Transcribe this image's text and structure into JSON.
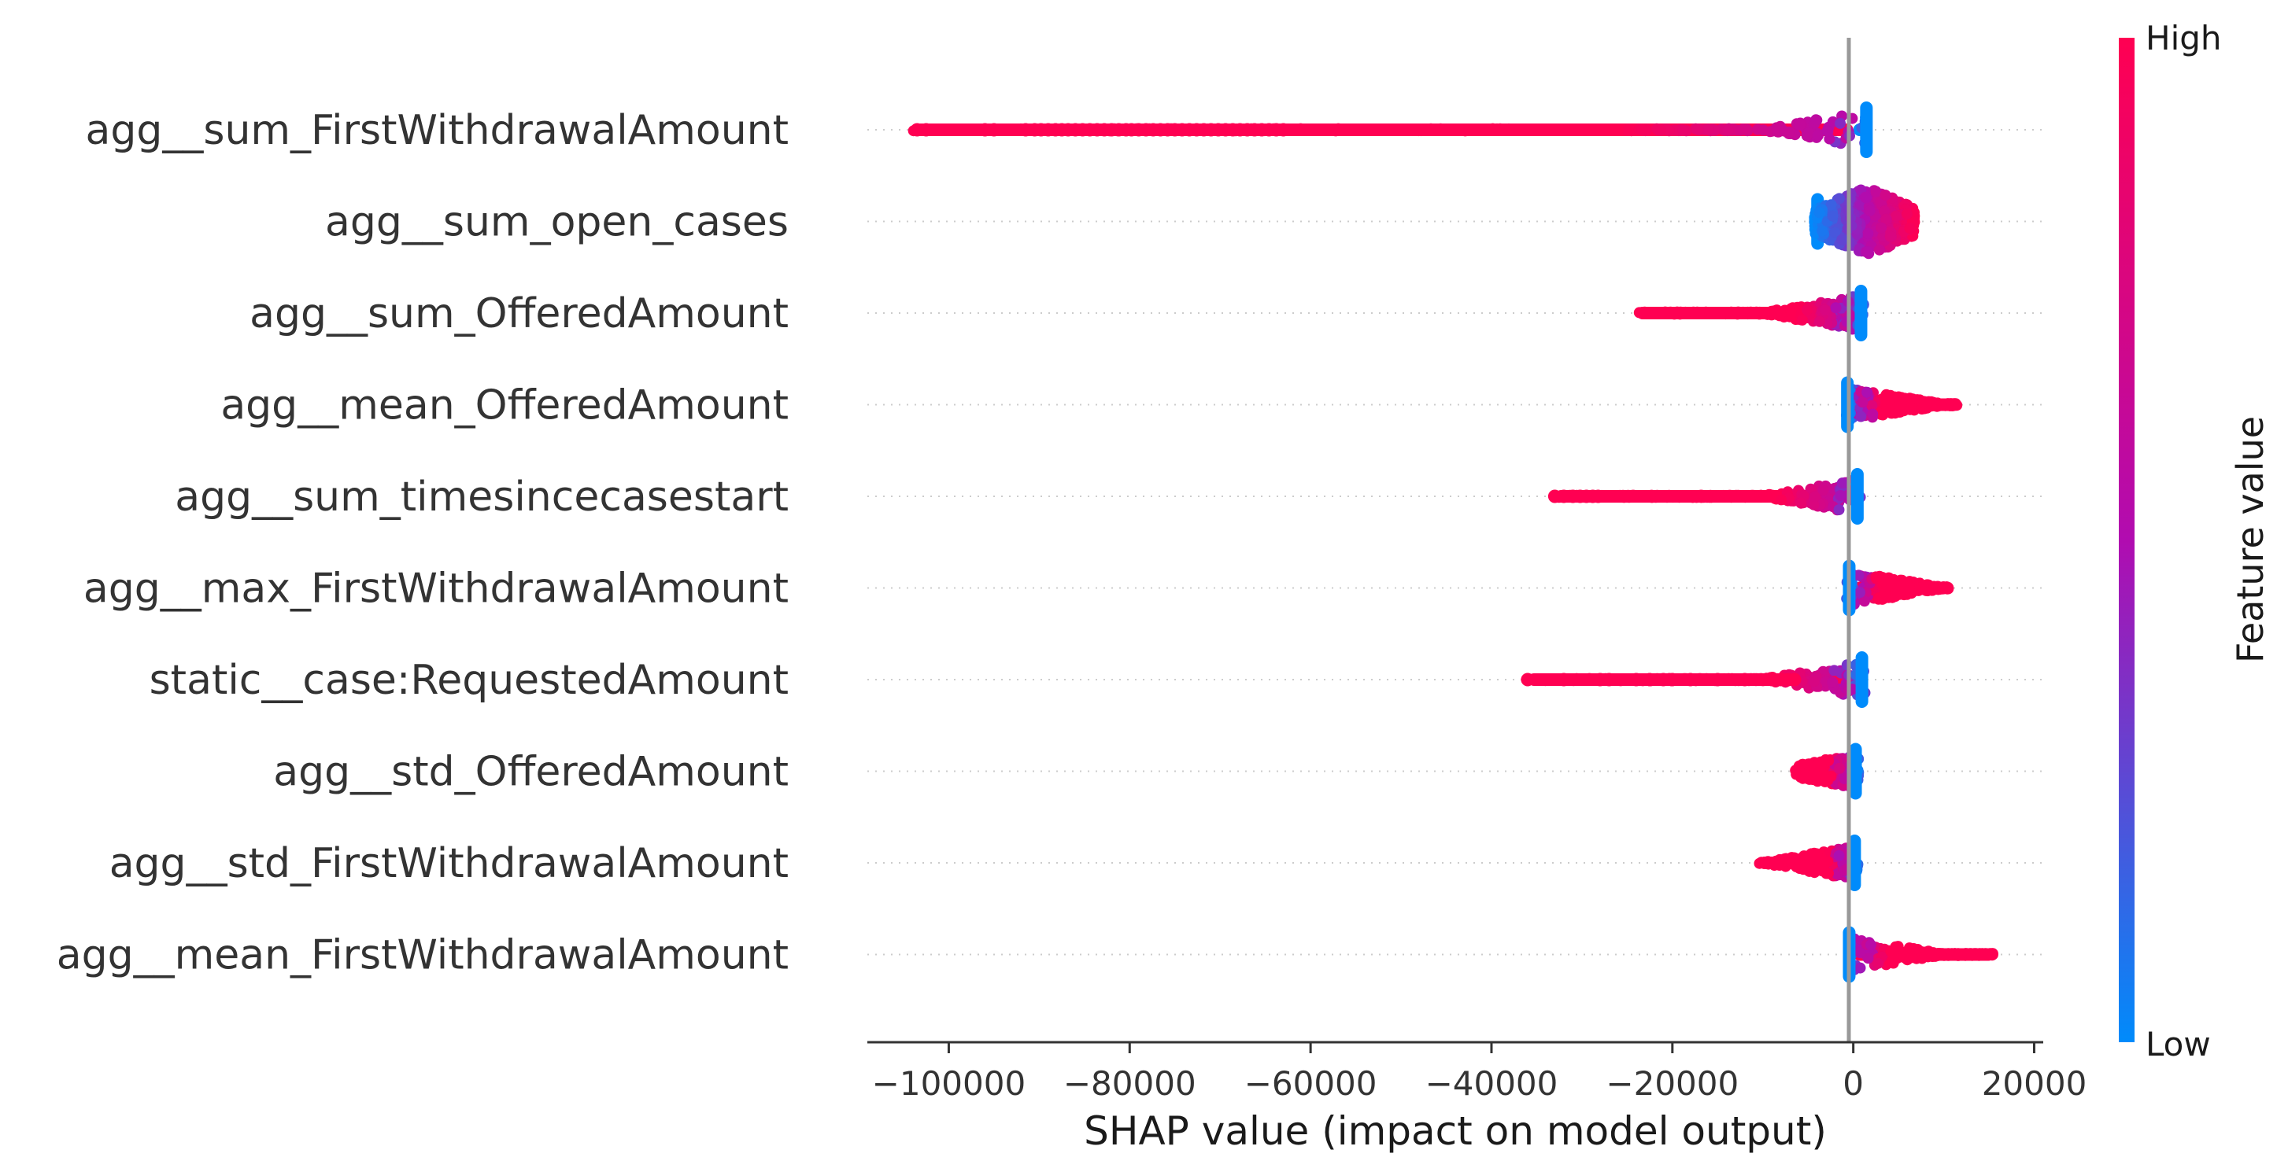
{
  "chart_data": {
    "type": "scatter",
    "xlabel": "SHAP value (impact on model output)",
    "xlim": [
      -109000,
      21000
    ],
    "xticks": [
      -100000,
      -80000,
      -60000,
      -40000,
      -20000,
      0,
      20000
    ],
    "xtick_labels": [
      "−100000",
      "−80000",
      "−60000",
      "−40000",
      "−20000",
      "0",
      "20000"
    ],
    "colorbar": {
      "title": "Feature value",
      "high_label": "High",
      "low_label": "Low",
      "low_color": "#008bfb",
      "mid_color": "#b10cb0",
      "high_color": "#ff0052"
    },
    "features": [
      {
        "name": "agg__sum_FirstWithdrawalAmount",
        "min": -104000,
        "max": 1800,
        "neg_color": "high",
        "outliers": [
          -103500,
          -102500,
          -96000,
          -95000,
          -91500,
          -90500,
          -89800,
          -89000,
          -88200,
          -87500,
          -86800,
          -86000,
          -85200,
          -84400,
          -83600,
          -82800,
          -82000,
          -81200,
          -80400,
          -79800,
          -79000,
          -78200,
          -77400,
          -76600,
          -75800,
          -75000,
          -74200,
          -73400,
          -72600,
          -71800,
          -71000,
          -70200,
          -69400,
          -68600,
          -67800,
          -67000,
          -66200,
          -65400,
          -64600,
          -63800,
          -63000
        ]
      },
      {
        "name": "agg__sum_open_cases",
        "min": -4300,
        "max": 6800,
        "neg_color": "low",
        "outliers": []
      },
      {
        "name": "agg__sum_OfferedAmount",
        "min": -24000,
        "max": 1200,
        "neg_color": "high",
        "outliers": []
      },
      {
        "name": "agg__mean_OfferedAmount",
        "min": -1000,
        "max": 11500,
        "neg_color": "low",
        "outliers": []
      },
      {
        "name": "agg__sum_timesincecasestart",
        "min": -33000,
        "max": 800,
        "neg_color": "high",
        "outliers": [
          -33000,
          -32000,
          -31000,
          -30200,
          -29500,
          -28800,
          -28200
        ]
      },
      {
        "name": "agg__max_FirstWithdrawalAmount",
        "min": -800,
        "max": 10500,
        "neg_color": "low",
        "outliers": []
      },
      {
        "name": "static__case:RequestedAmount",
        "min": -36000,
        "max": 1300,
        "neg_color": "high",
        "outliers": [
          -36000,
          -32000,
          -28000,
          -27000,
          -24000,
          -22500,
          -21000,
          -20000,
          -18000,
          -15000,
          -12000,
          -9000,
          -8000,
          -7200,
          -6500
        ]
      },
      {
        "name": "agg__std_OfferedAmount",
        "min": -6500,
        "max": 600,
        "neg_color": "high",
        "outliers": []
      },
      {
        "name": "agg__std_FirstWithdrawalAmount",
        "min": -10500,
        "max": 500,
        "neg_color": "high",
        "outliers": []
      },
      {
        "name": "agg__mean_FirstWithdrawalAmount",
        "min": -800,
        "max": 15500,
        "neg_color": "low",
        "outliers": []
      }
    ]
  }
}
